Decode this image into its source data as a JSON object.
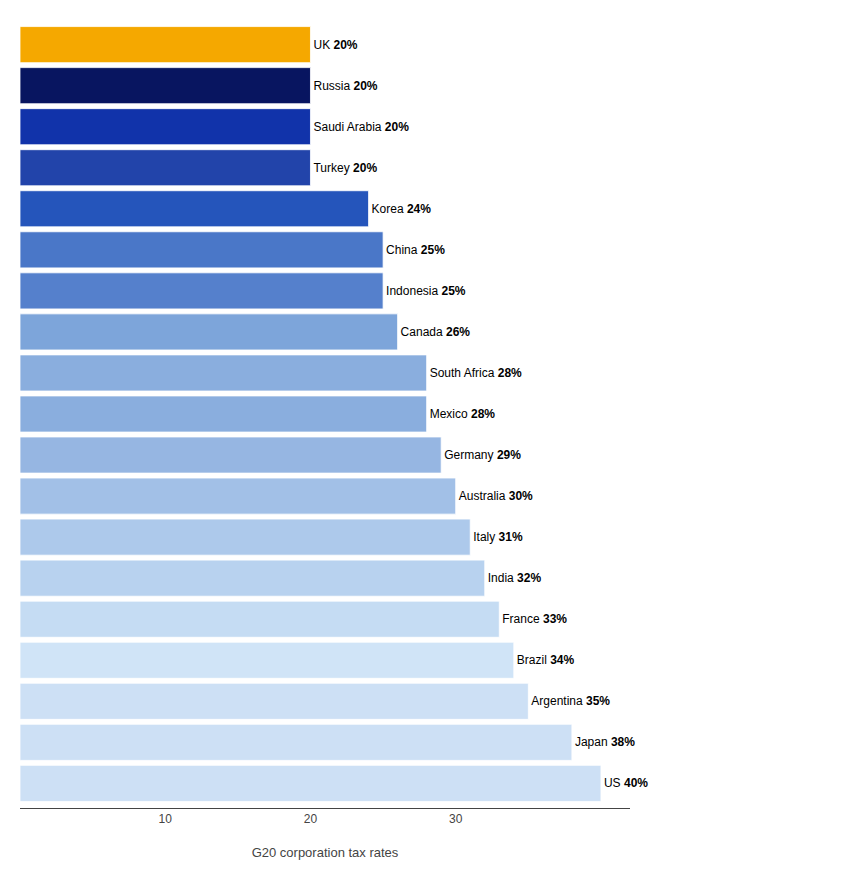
{
  "chart_data": {
    "type": "bar",
    "orientation": "horizontal",
    "categories": [
      "US",
      "Japan",
      "Argentina",
      "Brazil",
      "France",
      "India",
      "Italy",
      "Australia",
      "Germany",
      "Mexico",
      "South Africa",
      "Canada",
      "Indonesia",
      "China",
      "Korea",
      "Turkey",
      "Saudi Arabia",
      "Russia",
      "UK"
    ],
    "values": [
      40,
      38,
      35,
      34,
      33,
      32,
      31,
      30,
      29,
      28,
      28,
      26,
      25,
      25,
      24,
      20,
      20,
      20,
      20
    ],
    "value_labels": [
      "40%",
      "38%",
      "35%",
      "34%",
      "33%",
      "32%",
      "31%",
      "30%",
      "29%",
      "28%",
      "28%",
      "26%",
      "25%",
      "25%",
      "24%",
      "20%",
      "20%",
      "20%",
      "20%"
    ],
    "colors": [
      "#cde0f5",
      "#cde0f5",
      "#cde0f5",
      "#d0e4f7",
      "#c5dcf3",
      "#b8d2ef",
      "#adc9eb",
      "#a2c0e7",
      "#96b6e2",
      "#8aaede",
      "#8aaede",
      "#7da5da",
      "#5580cc",
      "#4a77c8",
      "#2555bb",
      "#2244aa",
      "#1133aa",
      "#081560",
      "#f5a800"
    ],
    "xlabel": "G20 corporation tax rates",
    "xlim": [
      0,
      42
    ],
    "xticks": [
      10,
      20,
      30
    ],
    "grid": false,
    "data_labels": true,
    "tick_labels": "x"
  }
}
